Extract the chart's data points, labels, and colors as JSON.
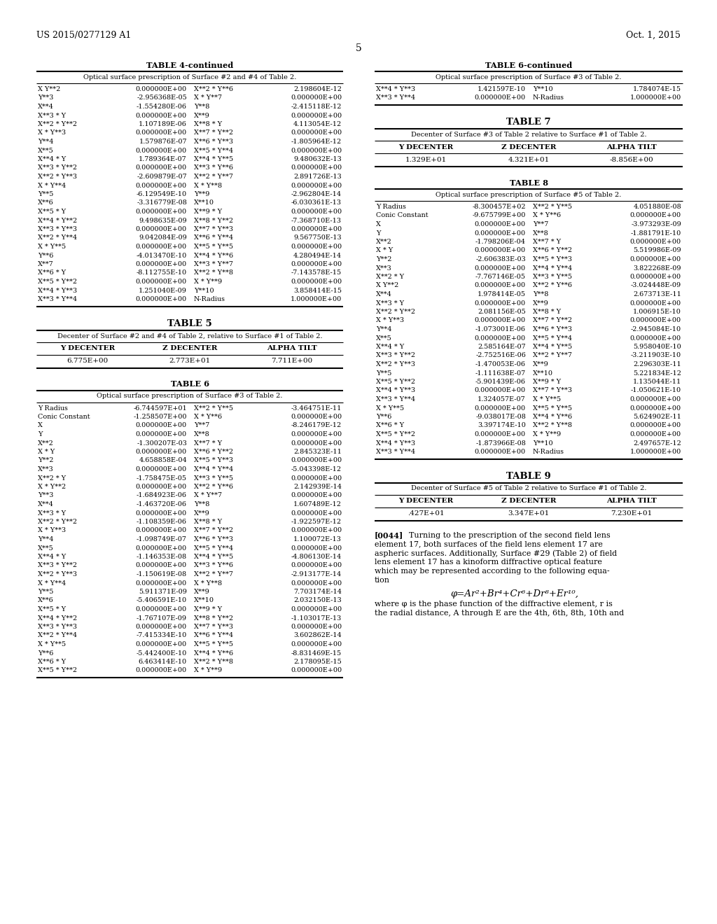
{
  "header_left": "US 2015/0277129 A1",
  "header_right": "Oct. 1, 2015",
  "page_number": "5",
  "table4_title": "TABLE 4-continued",
  "table4_subtitle": "Optical surface prescription of Surface #2 and #4 of Table 2.",
  "table4_data": [
    [
      "X Y**2",
      "0.000000E+00",
      "X**2 * Y**6",
      "2.198604E-12"
    ],
    [
      "Y**3",
      "-2.956368E-05",
      "X * Y**7",
      "0.000000E+00"
    ],
    [
      "X**4",
      "-1.554280E-06",
      "Y**8",
      "-2.415118E-12"
    ],
    [
      "X**3 * Y",
      "0.000000E+00",
      "X**9",
      "0.000000E+00"
    ],
    [
      "X**2 * Y**2",
      "1.107189E-06",
      "X**8 * Y",
      "4.113054E-12"
    ],
    [
      "X * Y**3",
      "0.000000E+00",
      "X**7 * Y**2",
      "0.000000E+00"
    ],
    [
      "Y**4",
      "1.579876E-07",
      "X**6 * Y**3",
      "-1.805964E-12"
    ],
    [
      "X**5",
      "0.000000E+00",
      "X**5 * Y**4",
      "0.000000E+00"
    ],
    [
      "X**4 * Y",
      "1.789364E-07",
      "X**4 * Y**5",
      "9.480632E-13"
    ],
    [
      "X**3 * Y**2",
      "0.000000E+00",
      "X**3 * Y**6",
      "0.000000E+00"
    ],
    [
      "X**2 * Y**3",
      "-2.609879E-07",
      "X**2 * Y**7",
      "2.891726E-13"
    ],
    [
      "X * Y**4",
      "0.000000E+00",
      "X * Y**8",
      "0.000000E+00"
    ],
    [
      "Y**5",
      "-6.129549E-10",
      "Y**9",
      "-2.962804E-14"
    ],
    [
      "X**6",
      "-3.316779E-08",
      "X**10",
      "-6.030361E-13"
    ],
    [
      "X**5 * Y",
      "0.000000E+00",
      "X**9 * Y",
      "0.000000E+00"
    ],
    [
      "X**4 * Y**2",
      "9.498635E-09",
      "X**8 * Y**2",
      "-7.368710E-13"
    ],
    [
      "X**3 * Y**3",
      "0.000000E+00",
      "X**7 * Y**3",
      "0.000000E+00"
    ],
    [
      "X**2 * Y**4",
      "9.042084E-09",
      "X**6 * Y**4",
      "9.567750E-13"
    ],
    [
      "X * Y**5",
      "0.000000E+00",
      "X**5 * Y**5",
      "0.000000E+00"
    ],
    [
      "Y**6",
      "-4.013470E-10",
      "X**4 * Y**6",
      "4.280494E-14"
    ],
    [
      "X**7",
      "0.000000E+00",
      "X**3 * Y**7",
      "0.000000E+00"
    ],
    [
      "X**6 * Y",
      "-8.112755E-10",
      "X**2 * Y**8",
      "-7.143578E-15"
    ],
    [
      "X**5 * Y**2",
      "0.000000E+00",
      "X * Y**9",
      "0.000000E+00"
    ],
    [
      "X**4 * Y**3",
      "1.251040E-09",
      "Y**10",
      "3.858414E-15"
    ],
    [
      "X**3 * Y**4",
      "0.000000E+00",
      "N-Radius",
      "1.000000E+00"
    ]
  ],
  "table5_title": "TABLE 5",
  "table5_subtitle": "Decenter of Surface #2 and #4 of Table 2, relative to Surface #1 of Table 2.",
  "table5_headers": [
    "Y DECENTER",
    "Z DECENTER",
    "ALPHA TILT"
  ],
  "table5_data": [
    [
      "6.775E+00",
      "2.773E+01",
      "7.711E+00"
    ]
  ],
  "table6_title": "TABLE 6",
  "table6_subtitle": "Optical surface prescription of Surface #3 of Table 2.",
  "table6_data": [
    [
      "Y Radius",
      "-6.744597E+01",
      "X**2 * Y**5",
      "-3.464751E-11"
    ],
    [
      "Conic Constant",
      "-1.258507E+00",
      "X * Y**6",
      "0.000000E+00"
    ],
    [
      "X",
      "0.000000E+00",
      "Y**7",
      "-8.246179E-12"
    ],
    [
      "Y",
      "0.000000E+00",
      "X**8",
      "0.000000E+00"
    ],
    [
      "X**2",
      "-1.300207E-03",
      "X**7 * Y",
      "0.000000E+00"
    ],
    [
      "X * Y",
      "0.000000E+00",
      "X**6 * Y**2",
      "2.845323E-11"
    ],
    [
      "Y**2",
      "4.658858E-04",
      "X**5 * Y**3",
      "0.000000E+00"
    ],
    [
      "X**3",
      "0.000000E+00",
      "X**4 * Y**4",
      "-5.043398E-12"
    ],
    [
      "X**2 * Y",
      "-1.758475E-05",
      "X**3 * Y**5",
      "0.000000E+00"
    ],
    [
      "X * Y**2",
      "0.000000E+00",
      "X**2 * Y**6",
      "2.142939E-14"
    ],
    [
      "Y**3",
      "-1.684923E-06",
      "X * Y**7",
      "0.000000E+00"
    ],
    [
      "X**4",
      "-1.463720E-06",
      "Y**8",
      "1.607489E-12"
    ],
    [
      "X**3 * Y",
      "0.000000E+00",
      "X**9",
      "0.000000E+00"
    ],
    [
      "X**2 * Y**2",
      "-1.108359E-06",
      "X**8 * Y",
      "-1.922597E-12"
    ],
    [
      "X * Y**3",
      "0.000000E+00",
      "X**7 * Y**2",
      "0.000000E+00"
    ],
    [
      "Y**4",
      "-1.098749E-07",
      "X**6 * Y**3",
      "1.100072E-13"
    ],
    [
      "X**5",
      "0.000000E+00",
      "X**5 * Y**4",
      "0.000000E+00"
    ],
    [
      "X**4 * Y",
      "-1.146353E-08",
      "X**4 * Y**5",
      "-4.806130E-14"
    ],
    [
      "X**3 * Y**2",
      "0.000000E+00",
      "X**3 * Y**6",
      "0.000000E+00"
    ],
    [
      "X**2 * Y**3",
      "-1.150619E-08",
      "X**2 * Y**7",
      "-2.913177E-14"
    ],
    [
      "X * Y**4",
      "0.000000E+00",
      "X * Y**8",
      "0.000000E+00"
    ],
    [
      "Y**5",
      "5.911371E-09",
      "X**9",
      "7.703174E-14"
    ],
    [
      "X**6",
      "-5.406591E-10",
      "X**10",
      "2.032150E-13"
    ],
    [
      "X**5 * Y",
      "0.000000E+00",
      "X**9 * Y",
      "0.000000E+00"
    ],
    [
      "X**4 * Y**2",
      "-1.767107E-09",
      "X**8 * Y**2",
      "-1.103017E-13"
    ],
    [
      "X**3 * Y**3",
      "0.000000E+00",
      "X**7 * Y**3",
      "0.000000E+00"
    ],
    [
      "X**2 * Y**4",
      "-7.415334E-10",
      "X**6 * Y**4",
      "3.602862E-14"
    ],
    [
      "X * Y**5",
      "0.000000E+00",
      "X**5 * Y**5",
      "0.000000E+00"
    ],
    [
      "Y**6",
      "-5.442400E-10",
      "X**4 * Y**6",
      "-8.831469E-15"
    ],
    [
      "X**6 * Y",
      "6.463414E-10",
      "X**2 * Y**8",
      "2.178095E-15"
    ],
    [
      "X**5 * Y**2",
      "0.000000E+00",
      "X * Y**9",
      "0.000000E+00"
    ]
  ],
  "table6cont_title": "TABLE 6-continued",
  "table6cont_subtitle": "Optical surface prescription of Surface #3 of Table 2.",
  "table6cont_data": [
    [
      "X**4 * Y**3",
      "1.421597E-10",
      "Y**10",
      "1.784074E-15"
    ],
    [
      "X**3 * Y**4",
      "0.000000E+00",
      "N-Radius",
      "1.000000E+00"
    ]
  ],
  "table7_title": "TABLE 7",
  "table7_subtitle": "Decenter of Surface #3 of Table 2 relative to Surface #1 of Table 2.",
  "table7_headers": [
    "Y DECENTER",
    "Z DECENTER",
    "ALPHA TILT"
  ],
  "table7_data": [
    [
      "1.329E+01",
      "4.321E+01",
      "-8.856E+00"
    ]
  ],
  "table8_title": "TABLE 8",
  "table8_subtitle": "Optical surface prescription of Surface #5 of Table 2.",
  "table8_data": [
    [
      "Y Radius",
      "-8.300457E+02",
      "X**2 * Y**5",
      "4.051880E-08"
    ],
    [
      "Conic Constant",
      "-9.675799E+00",
      "X * Y**6",
      "0.000000E+00"
    ],
    [
      "X",
      "0.000000E+00",
      "Y**7",
      "-3.973293E-09"
    ],
    [
      "Y",
      "0.000000E+00",
      "X**8",
      "-1.881791E-10"
    ],
    [
      "X**2",
      "-1.798206E-04",
      "X**7 * Y",
      "0.000000E+00"
    ],
    [
      "X * Y",
      "0.000000E+00",
      "X**6 * Y**2",
      "5.519986E-09"
    ],
    [
      "Y**2",
      "-2.606383E-03",
      "X**5 * Y**3",
      "0.000000E+00"
    ],
    [
      "X**3",
      "0.000000E+00",
      "X**4 * Y**4",
      "3.822268E-09"
    ],
    [
      "X**2 * Y",
      "-7.767146E-05",
      "X**3 * Y**5",
      "0.000000E+00"
    ],
    [
      "X Y**2",
      "0.000000E+00",
      "X**2 * Y**6",
      "-3.024448E-09"
    ],
    [
      "X**4",
      "1.978414E-05",
      "Y**8",
      "2.673713E-11"
    ],
    [
      "X**3 * Y",
      "0.000000E+00",
      "X**9",
      "0.000000E+00"
    ],
    [
      "X**2 * Y**2",
      "2.081156E-05",
      "X**8 * Y",
      "1.006915E-10"
    ],
    [
      "X * Y**3",
      "0.000000E+00",
      "X**7 * Y**2",
      "0.000000E+00"
    ],
    [
      "Y**4",
      "-1.073001E-06",
      "X**6 * Y**3",
      "-2.945084E-10"
    ],
    [
      "X**5",
      "0.000000E+00",
      "X**5 * Y**4",
      "0.000000E+00"
    ],
    [
      "X**4 * Y",
      "2.585164E-07",
      "X**4 * Y**5",
      "5.958040E-10"
    ],
    [
      "X**3 * Y**2",
      "-2.752516E-06",
      "X**2 * Y**7",
      "-3.211903E-10"
    ],
    [
      "X**2 * Y**3",
      "-1.470053E-06",
      "X**9",
      "2.296303E-11"
    ],
    [
      "Y**5",
      "-1.111638E-07",
      "X**10",
      "5.221834E-12"
    ],
    [
      "X**5 * Y**2",
      "-5.901439E-06",
      "X**9 * Y",
      "1.135044E-11"
    ],
    [
      "X**4 * Y**3",
      "0.000000E+00",
      "X**7 * Y**3",
      "-1.050621E-10"
    ],
    [
      "X**3 * Y**4",
      "1.324057E-07",
      "X * Y**5",
      "0.000000E+00"
    ],
    [
      "X * Y**5",
      "0.000000E+00",
      "X**5 * Y**5",
      "0.000000E+00"
    ],
    [
      "Y**6",
      "-9.038017E-08",
      "X**4 * Y**6",
      "5.624902E-11"
    ],
    [
      "X**6 * Y",
      "3.397174E-10",
      "X**2 * Y**8",
      "0.000000E+00"
    ],
    [
      "X**5 * Y**2",
      "0.000000E+00",
      "X * Y**9",
      "0.000000E+00"
    ],
    [
      "X**4 * Y**3",
      "-1.873966E-08",
      "Y**10",
      "2.497657E-12"
    ],
    [
      "X**3 * Y**4",
      "0.000000E+00",
      "N-Radius",
      "1.000000E+00"
    ]
  ],
  "table9_title": "TABLE 9",
  "table9_subtitle": "Decenter of Surface #5 of Table 2 relative to Surface #1 of Table 2.",
  "table9_headers": [
    "Y DECENTER",
    "Z DECENTER",
    "ALPHA TILT"
  ],
  "table9_data": [
    [
      ".427E+01",
      "3.347E+01",
      "7.230E+01"
    ]
  ],
  "paragraph_num": "[0044]",
  "paragraph_text1": "Turning to the prescription of the second field lens element",
  "paragraph_text2": "17, both surfaces of the field lens element 17 are aspheric surfaces. Additionally, Surface #29 (Table 2) of field lens element 17 has a kinoform diffractive optical feature which may be represented according to the following equa-tion",
  "equation": "φ=Ar²+Br⁴+Cr⁶+Dr⁸+Er¹⁰,",
  "equation_note": "where φ is the phase function of the diffractive element, r is the radial distance, A through E are the 4th, 6th, 8th, 10th and"
}
